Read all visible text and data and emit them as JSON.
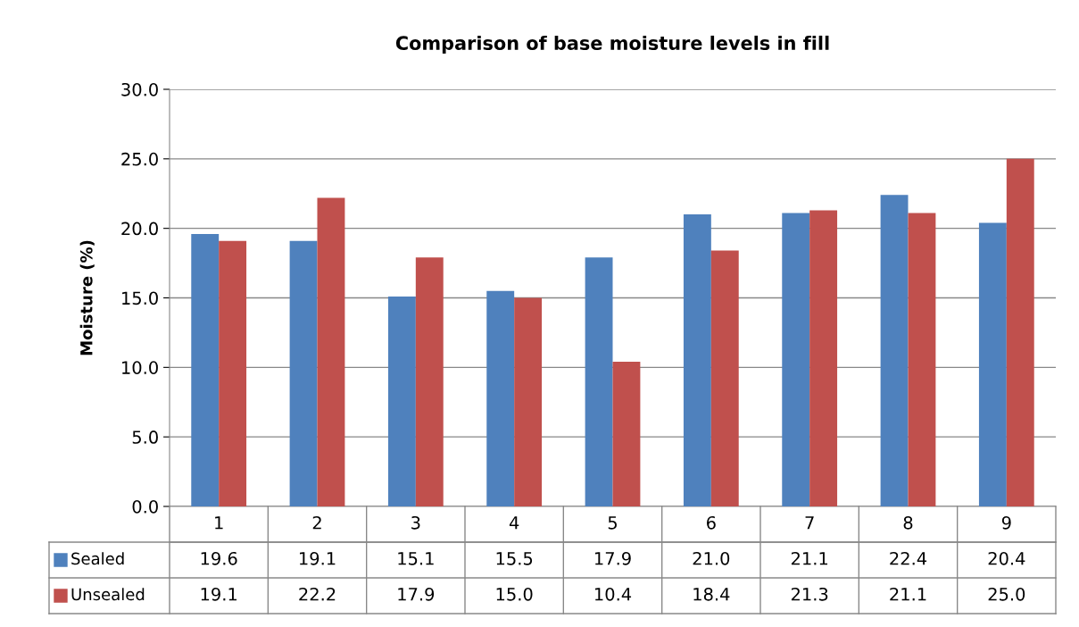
{
  "chart_data": {
    "type": "bar",
    "title": "Comparison of base moisture levels in fill",
    "ylabel": "Moisture (%)",
    "categories": [
      "1",
      "2",
      "3",
      "4",
      "5",
      "6",
      "7",
      "8",
      "9"
    ],
    "series": [
      {
        "name": "Sealed",
        "color": "#4f81bd",
        "values": [
          19.6,
          19.1,
          15.1,
          15.5,
          17.9,
          21.0,
          21.1,
          22.4,
          20.4
        ],
        "value_labels": [
          "19.6",
          "19.1",
          "15.1",
          "15.5",
          "17.9",
          "21.0",
          "21.1",
          "22.4",
          "20.4"
        ]
      },
      {
        "name": "Unsealed",
        "color": "#c0504d",
        "values": [
          19.1,
          22.2,
          17.9,
          15.0,
          10.4,
          18.4,
          21.3,
          21.1,
          25.0
        ],
        "value_labels": [
          "19.1",
          "22.2",
          "17.9",
          "15.0",
          "10.4",
          "18.4",
          "21.3",
          "21.1",
          "25.0"
        ]
      }
    ],
    "ylim": [
      0,
      30
    ],
    "yticks": [
      {
        "value": 0,
        "label": "0.0"
      },
      {
        "value": 5,
        "label": "5.0"
      },
      {
        "value": 10,
        "label": "10.0"
      },
      {
        "value": 15,
        "label": "15.0"
      },
      {
        "value": 20,
        "label": "20.0"
      },
      {
        "value": 25,
        "label": "25.0"
      },
      {
        "value": 30,
        "label": "30.0"
      }
    ],
    "grid": "y",
    "legend": "bottom"
  }
}
